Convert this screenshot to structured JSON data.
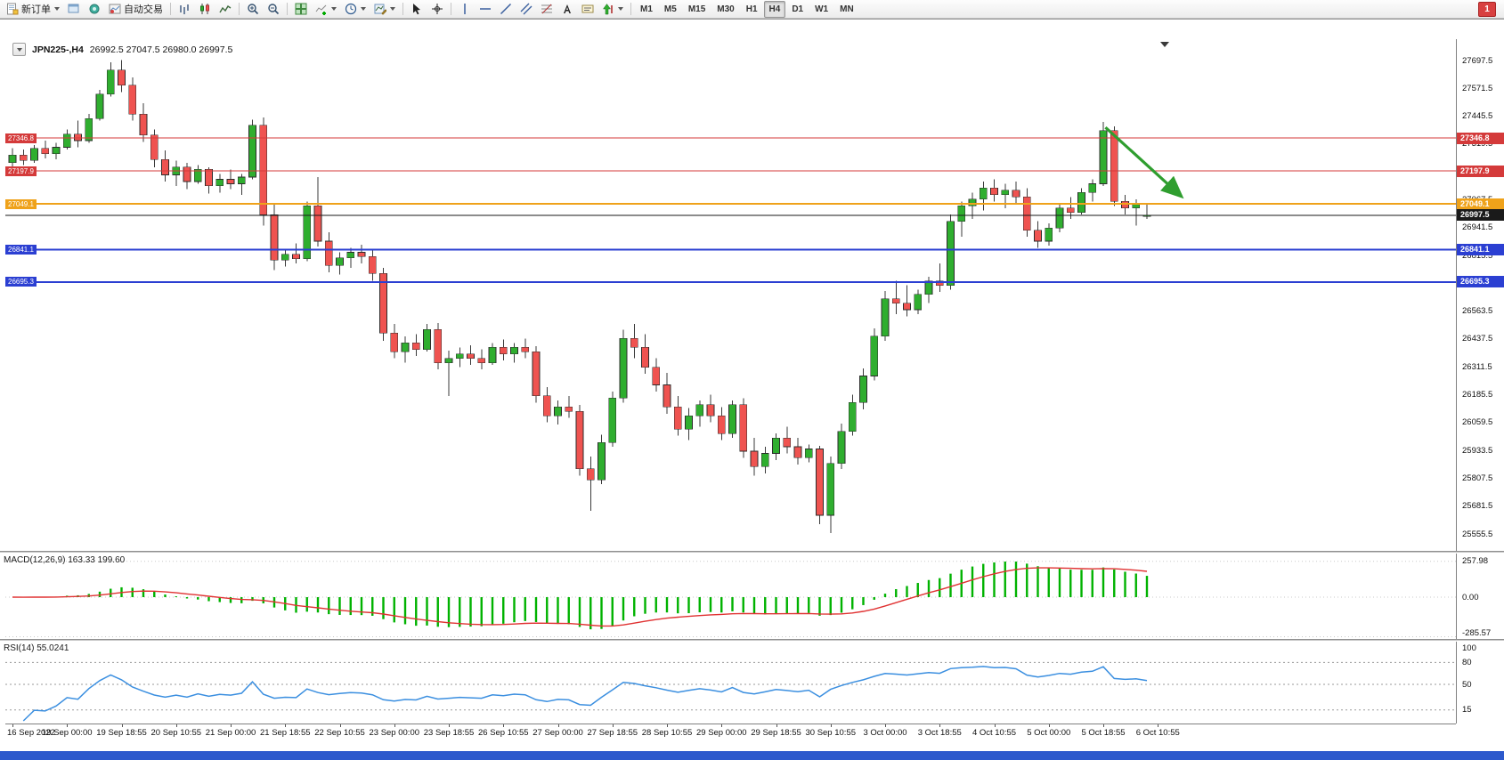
{
  "toolbar": {
    "new_order_label": "新订单",
    "autotrading_label": "自动交易",
    "timeframes": [
      "M1",
      "M5",
      "M15",
      "M30",
      "H1",
      "H4",
      "D1",
      "W1",
      "MN"
    ],
    "active_timeframe": "H4",
    "alert_badge": "1",
    "icon_names": [
      "new-order-icon",
      "profiles-icon",
      "quotes-icon",
      "autotrading-icon",
      "bar-chart-icon",
      "candlestick-icon",
      "line-chart-icon",
      "zoom-in-icon",
      "zoom-out-icon",
      "tile-windows-icon",
      "indicators-icon",
      "periods-icon",
      "templates-icon",
      "cursor-icon",
      "crosshair-icon",
      "vertical-line-icon",
      "horizontal-line-icon",
      "trendline-icon",
      "channel-icon",
      "fibonacci-icon",
      "text-icon",
      "text-label-icon",
      "arrows-icon"
    ]
  },
  "chart": {
    "symbol_label": "JPN225-,H4",
    "ohlc": "26992.5 27047.5 26980.0 26997.5",
    "price_axis": {
      "max": 27697.5,
      "min": 25555.5,
      "ticks": [
        "27697.5",
        "27571.5",
        "27445.5",
        "27319.5",
        "27193.5",
        "27067.5",
        "26941.5",
        "26815.5",
        "26689.5",
        "26563.5",
        "26437.5",
        "26311.5",
        "26185.5",
        "26059.5",
        "25933.5",
        "25807.5",
        "25681.5",
        "25555.5"
      ]
    },
    "hlines": [
      {
        "value": 27346.8,
        "label": "27346.8",
        "color": "#d43a3a",
        "width": 1
      },
      {
        "value": 27197.9,
        "label": "27197.9",
        "color": "#d43a3a",
        "width": 1
      },
      {
        "value": 27049.1,
        "label": "27049.1",
        "color": "#efa21a",
        "width": 2
      },
      {
        "value": 26841.1,
        "label": "26841.1",
        "color": "#2b3fd2",
        "width": 2
      },
      {
        "value": 26695.3,
        "label": "26695.3",
        "color": "#2b3fd2",
        "width": 2
      }
    ],
    "current_price": {
      "value": 26997.5,
      "label": "26997.5",
      "color": "#1a1a1a"
    },
    "arrow": {
      "from_bar": 100.2,
      "from_price": 27395,
      "to_bar": 107.0,
      "to_price": 27090,
      "color": "#2f9e2f"
    },
    "time_labels": [
      "16 Sep 2022",
      "19 Sep 00:00",
      "19 Sep 18:55",
      "20 Sep 10:55",
      "21 Sep 00:00",
      "21 Sep 18:55",
      "22 Sep 10:55",
      "23 Sep 00:00",
      "23 Sep 18:55",
      "26 Sep 10:55",
      "27 Sep 00:00",
      "27 Sep 18:55",
      "28 Sep 10:55",
      "29 Sep 00:00",
      "29 Sep 18:55",
      "30 Sep 10:55",
      "3 Oct 00:00",
      "3 Oct 18:55",
      "4 Oct 10:55",
      "5 Oct 00:00",
      "5 Oct 18:55",
      "6 Oct 10:55"
    ]
  },
  "indicators": {
    "macd": {
      "label": "MACD(12,26,9) 163.33 199.60",
      "params": [
        12,
        26,
        9
      ],
      "ticks": [
        {
          "v": 257.98,
          "label": "257.98"
        },
        {
          "v": 0,
          "label": "0.00"
        },
        {
          "v": -285.57,
          "label": "-285.57"
        }
      ],
      "histogram_color": "#00b200",
      "signal_color": "#e03232"
    },
    "rsi": {
      "label": "RSI(14) 55.0241",
      "period": 14,
      "current": 55.0241,
      "ticks": [
        {
          "v": 100,
          "label": "100"
        },
        {
          "v": 80,
          "label": "80"
        },
        {
          "v": 50,
          "label": "50"
        },
        {
          "v": 15,
          "label": "15"
        }
      ],
      "levels": [
        80,
        50,
        15
      ],
      "line_color": "#3b8fe0"
    }
  },
  "chart_data": {
    "type": "candlestick",
    "symbol": "JPN225-",
    "timeframe": "H4",
    "up_color": "#2fae2f",
    "down_color": "#ef5350",
    "candles": [
      [
        27235,
        27300,
        27190,
        27270
      ],
      [
        27270,
        27295,
        27225,
        27245
      ],
      [
        27245,
        27315,
        27235,
        27300
      ],
      [
        27300,
        27335,
        27255,
        27275
      ],
      [
        27275,
        27325,
        27250,
        27305
      ],
      [
        27305,
        27385,
        27295,
        27365
      ],
      [
        27365,
        27425,
        27305,
        27335
      ],
      [
        27335,
        27455,
        27325,
        27435
      ],
      [
        27435,
        27565,
        27425,
        27545
      ],
      [
        27545,
        27690,
        27535,
        27655
      ],
      [
        27655,
        27700,
        27555,
        27585
      ],
      [
        27585,
        27620,
        27425,
        27455
      ],
      [
        27455,
        27505,
        27330,
        27360
      ],
      [
        27360,
        27385,
        27215,
        27250
      ],
      [
        27250,
        27290,
        27150,
        27180
      ],
      [
        27180,
        27245,
        27130,
        27215
      ],
      [
        27215,
        27235,
        27115,
        27150
      ],
      [
        27150,
        27225,
        27140,
        27205
      ],
      [
        27205,
        27215,
        27095,
        27130
      ],
      [
        27130,
        27185,
        27100,
        27160
      ],
      [
        27160,
        27205,
        27115,
        27140
      ],
      [
        27140,
        27185,
        27090,
        27170
      ],
      [
        27170,
        27430,
        27160,
        27405
      ],
      [
        27405,
        27440,
        26950,
        27000
      ],
      [
        27000,
        27050,
        26750,
        26795
      ],
      [
        26795,
        26845,
        26765,
        26820
      ],
      [
        26820,
        26870,
        26780,
        26800
      ],
      [
        26800,
        27060,
        26790,
        27040
      ],
      [
        27040,
        27170,
        26855,
        26880
      ],
      [
        26880,
        26920,
        26740,
        26770
      ],
      [
        26770,
        26830,
        26730,
        26805
      ],
      [
        26805,
        26850,
        26760,
        26830
      ],
      [
        26830,
        26865,
        26780,
        26810
      ],
      [
        26810,
        26840,
        26700,
        26735
      ],
      [
        26735,
        26760,
        26430,
        26465
      ],
      [
        26465,
        26505,
        26350,
        26380
      ],
      [
        26380,
        26450,
        26330,
        26420
      ],
      [
        26420,
        26460,
        26360,
        26390
      ],
      [
        26390,
        26505,
        26380,
        26480
      ],
      [
        26480,
        26510,
        26300,
        26330
      ],
      [
        26330,
        26385,
        26180,
        26350
      ],
      [
        26350,
        26400,
        26310,
        26370
      ],
      [
        26370,
        26410,
        26320,
        26350
      ],
      [
        26350,
        26390,
        26300,
        26330
      ],
      [
        26330,
        26420,
        26320,
        26400
      ],
      [
        26400,
        26435,
        26340,
        26370
      ],
      [
        26370,
        26420,
        26330,
        26400
      ],
      [
        26400,
        26440,
        26350,
        26380
      ],
      [
        26380,
        26405,
        26150,
        26180
      ],
      [
        26180,
        26220,
        26060,
        26090
      ],
      [
        26090,
        26160,
        26050,
        26130
      ],
      [
        26130,
        26180,
        26080,
        26110
      ],
      [
        26110,
        26140,
        25820,
        25850
      ],
      [
        25850,
        25905,
        25660,
        25800
      ],
      [
        25800,
        26005,
        25780,
        25970
      ],
      [
        25970,
        26200,
        25950,
        26170
      ],
      [
        26170,
        26480,
        26150,
        26440
      ],
      [
        26440,
        26505,
        26350,
        26400
      ],
      [
        26400,
        26460,
        26280,
        26310
      ],
      [
        26310,
        26350,
        26200,
        26230
      ],
      [
        26230,
        26285,
        26100,
        26130
      ],
      [
        26130,
        26180,
        26000,
        26030
      ],
      [
        26030,
        26125,
        25980,
        26090
      ],
      [
        26090,
        26160,
        26040,
        26140
      ],
      [
        26140,
        26185,
        26060,
        26090
      ],
      [
        26090,
        26130,
        25980,
        26010
      ],
      [
        26010,
        26160,
        25990,
        26140
      ],
      [
        26140,
        26170,
        25900,
        25930
      ],
      [
        25930,
        25990,
        25820,
        25860
      ],
      [
        25860,
        25950,
        25830,
        25920
      ],
      [
        25920,
        26010,
        25890,
        25990
      ],
      [
        25990,
        26040,
        25920,
        25950
      ],
      [
        25950,
        25990,
        25870,
        25900
      ],
      [
        25900,
        25960,
        25880,
        25940
      ],
      [
        25940,
        25955,
        25600,
        25640
      ],
      [
        25640,
        25905,
        25560,
        25875
      ],
      [
        25875,
        26055,
        25850,
        26020
      ],
      [
        26020,
        26185,
        26000,
        26150
      ],
      [
        26150,
        26305,
        26120,
        26270
      ],
      [
        26270,
        26485,
        26250,
        26450
      ],
      [
        26450,
        26655,
        26430,
        26620
      ],
      [
        26620,
        26700,
        26550,
        26600
      ],
      [
        26600,
        26680,
        26540,
        26570
      ],
      [
        26570,
        26660,
        26550,
        26640
      ],
      [
        26640,
        26720,
        26600,
        26700
      ],
      [
        26700,
        26780,
        26650,
        26680
      ],
      [
        26680,
        27000,
        26660,
        26970
      ],
      [
        26970,
        27060,
        26900,
        27040
      ],
      [
        27040,
        27100,
        26980,
        27070
      ],
      [
        27070,
        27150,
        27020,
        27120
      ],
      [
        27120,
        27160,
        27060,
        27090
      ],
      [
        27090,
        27140,
        27030,
        27110
      ],
      [
        27110,
        27150,
        27050,
        27080
      ],
      [
        27080,
        27120,
        26900,
        26930
      ],
      [
        26930,
        26970,
        26850,
        26880
      ],
      [
        26880,
        26960,
        26860,
        26940
      ],
      [
        26940,
        27050,
        26920,
        27030
      ],
      [
        27030,
        27080,
        26980,
        27010
      ],
      [
        27010,
        27120,
        27000,
        27100
      ],
      [
        27100,
        27160,
        27060,
        27140
      ],
      [
        27140,
        27420,
        27130,
        27380
      ],
      [
        27380,
        27400,
        27040,
        27060
      ],
      [
        27060,
        27090,
        27000,
        27030
      ],
      [
        27030,
        27070,
        26950,
        27050
      ],
      [
        26992.5,
        27047.5,
        26980,
        26997.5
      ]
    ]
  }
}
